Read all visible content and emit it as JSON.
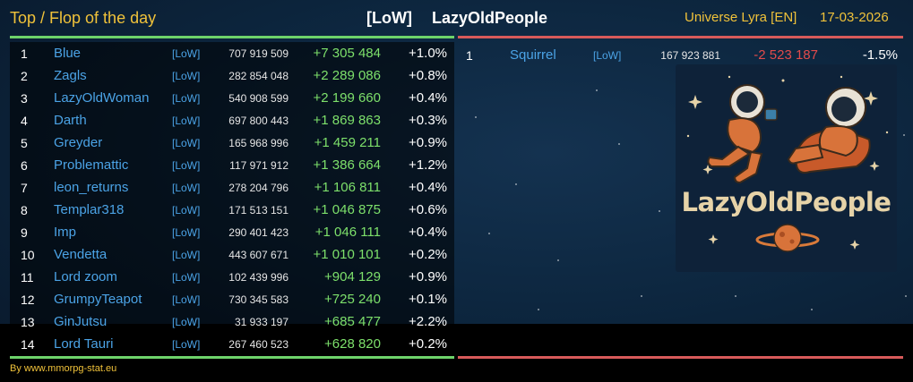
{
  "header": {
    "title": "Top / Flop of the day",
    "alliance_tag": "[LoW]",
    "alliance_name": "LazyOldPeople",
    "universe": "Universe Lyra [EN]",
    "date": "17-03-2026"
  },
  "top": [
    {
      "rank": "1",
      "name": "Blue",
      "tag": "[LoW]",
      "points": "707 919 509",
      "diff": "+7 305 484",
      "pct": "+1.0%"
    },
    {
      "rank": "2",
      "name": "Zagls",
      "tag": "[LoW]",
      "points": "282 854 048",
      "diff": "+2 289 086",
      "pct": "+0.8%"
    },
    {
      "rank": "3",
      "name": "LazyOldWoman",
      "tag": "[LoW]",
      "points": "540 908 599",
      "diff": "+2 199 660",
      "pct": "+0.4%"
    },
    {
      "rank": "4",
      "name": "Darth",
      "tag": "[LoW]",
      "points": "697 800 443",
      "diff": "+1 869 863",
      "pct": "+0.3%"
    },
    {
      "rank": "5",
      "name": "Greyder",
      "tag": "[LoW]",
      "points": "165 968 996",
      "diff": "+1 459 211",
      "pct": "+0.9%"
    },
    {
      "rank": "6",
      "name": "Problemattic",
      "tag": "[LoW]",
      "points": "117 971 912",
      "diff": "+1 386 664",
      "pct": "+1.2%"
    },
    {
      "rank": "7",
      "name": "leon_returns",
      "tag": "[LoW]",
      "points": "278 204 796",
      "diff": "+1 106 811",
      "pct": "+0.4%"
    },
    {
      "rank": "8",
      "name": "Templar318",
      "tag": "[LoW]",
      "points": "171 513 151",
      "diff": "+1 046 875",
      "pct": "+0.6%"
    },
    {
      "rank": "9",
      "name": "Imp",
      "tag": "[LoW]",
      "points": "290 401 423",
      "diff": "+1 046 111",
      "pct": "+0.4%"
    },
    {
      "rank": "10",
      "name": "Vendetta",
      "tag": "[LoW]",
      "points": "443 607 671",
      "diff": "+1 010 101",
      "pct": "+0.2%"
    },
    {
      "rank": "11",
      "name": "Lord zoom",
      "tag": "[LoW]",
      "points": "102 439 996",
      "diff": "+904 129",
      "pct": "+0.9%"
    },
    {
      "rank": "12",
      "name": "GrumpyTeapot",
      "tag": "[LoW]",
      "points": "730 345 583",
      "diff": "+725 240",
      "pct": "+0.1%"
    },
    {
      "rank": "13",
      "name": "GinJutsu",
      "tag": "[LoW]",
      "points": "31 933 197",
      "diff": "+685 477",
      "pct": "+2.2%"
    },
    {
      "rank": "14",
      "name": "Lord Tauri",
      "tag": "[LoW]",
      "points": "267 460 523",
      "diff": "+628 820",
      "pct": "+0.2%"
    }
  ],
  "flop": [
    {
      "rank": "1",
      "name": "Squirrel",
      "tag": "[LoW]",
      "points": "167 923 881",
      "diff": "-2 523 187",
      "pct": "-1.5%"
    }
  ],
  "logo": {
    "text": "LazyOldPeople"
  },
  "footer": {
    "credit": "By www.mmorpg-stat.eu"
  },
  "colors": {
    "gold": "#f0c23a",
    "name_blue": "#4ba3e6",
    "gain_green": "#7de06b",
    "loss_red": "#e24b4b",
    "top_line": "#6dd36a",
    "flop_line": "#d75a5a"
  }
}
